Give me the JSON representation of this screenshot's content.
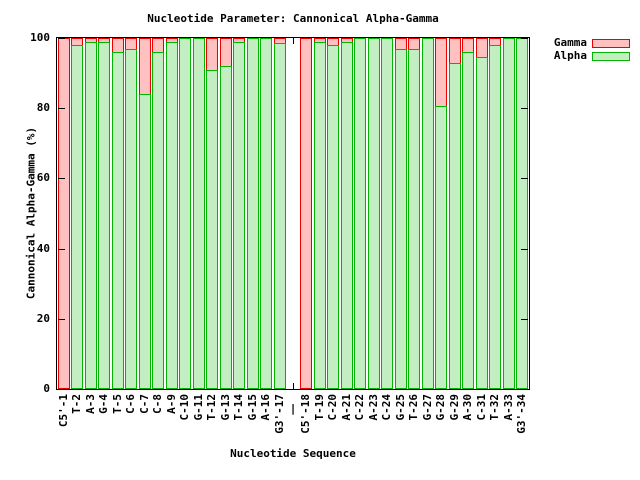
{
  "title": "Nucleotide Parameter: Cannonical Alpha-Gamma",
  "legend": {
    "position": "top-right-outside",
    "items": [
      {
        "label": "Gamma",
        "fill": "#ffc0c0",
        "border": "#ee0000"
      },
      {
        "label": "Alpha",
        "fill": "#c2eec2",
        "border": "#00b400"
      }
    ]
  },
  "chart_data": {
    "type": "bar",
    "title": "Nucleotide Parameter: Cannonical Alpha-Gamma",
    "xlabel": "Nucleotide Sequence",
    "ylabel": "Cannonical Alpha-Gamma (%)",
    "ylim": [
      0,
      100
    ],
    "yticks": [
      0,
      20,
      40,
      60,
      80,
      100
    ],
    "grid": false,
    "separator_label": "|",
    "categories": [
      "C5'-1",
      "T-2",
      "A-3",
      "G-4",
      "T-5",
      "C-6",
      "C-7",
      "C-8",
      "A-9",
      "C-10",
      "G-11",
      "T-12",
      "G-13",
      "T-14",
      "G-15",
      "A-16",
      "G3'-17",
      "|",
      "C5'-18",
      "T-19",
      "C-20",
      "A-21",
      "C-22",
      "A-23",
      "C-24",
      "G-25",
      "T-26",
      "G-27",
      "G-28",
      "G-29",
      "A-30",
      "C-31",
      "T-32",
      "A-33",
      "G3'-34"
    ],
    "series": [
      {
        "name": "Gamma",
        "values": [
          100,
          100,
          100,
          100,
          100,
          100,
          100,
          100,
          100,
          100,
          100,
          100,
          100,
          100,
          100,
          100,
          100,
          null,
          100,
          100,
          100,
          100,
          100,
          100,
          100,
          100,
          100,
          100,
          100,
          100,
          100,
          100,
          100,
          100,
          100
        ]
      },
      {
        "name": "Alpha",
        "values": [
          0,
          98,
          99,
          99,
          96,
          97,
          84,
          96,
          99,
          100,
          100,
          91,
          92,
          99,
          100,
          100,
          98.5,
          null,
          0,
          99,
          98,
          99,
          100,
          100,
          100,
          97,
          97,
          100,
          80.5,
          93,
          96,
          94.5,
          98,
          100,
          100
        ]
      }
    ],
    "colors": {
      "gamma_fill": "#ffc0c0",
      "gamma_border": "#ee0000",
      "alpha_fill": "#c2eec2",
      "alpha_border": "#00b400"
    }
  }
}
